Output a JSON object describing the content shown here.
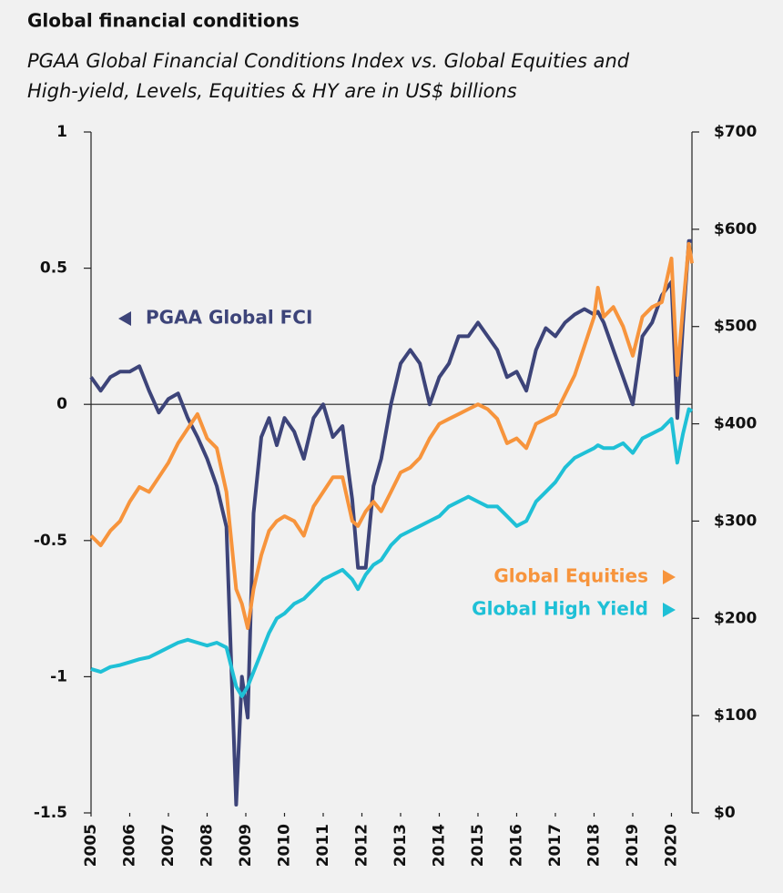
{
  "chart_data": {
    "type": "line",
    "title": "Global financial conditions",
    "subtitle": [
      "PGAA Global Financial Conditions Index vs. Global Equities and",
      "High-yield, Levels, Equities & HY are in US$ billions"
    ],
    "x": [
      2005,
      2005.25,
      2005.5,
      2005.75,
      2006,
      2006.25,
      2006.5,
      2006.75,
      2007,
      2007.25,
      2007.5,
      2007.75,
      2008,
      2008.25,
      2008.5,
      2008.75,
      2008.9,
      2009.05,
      2009.2,
      2009.4,
      2009.6,
      2009.8,
      2010,
      2010.25,
      2010.5,
      2010.75,
      2011,
      2011.25,
      2011.5,
      2011.75,
      2011.9,
      2012.1,
      2012.3,
      2012.5,
      2012.75,
      2013,
      2013.25,
      2013.5,
      2013.75,
      2014,
      2014.25,
      2014.5,
      2014.75,
      2015,
      2015.25,
      2015.5,
      2015.75,
      2016,
      2016.25,
      2016.5,
      2016.75,
      2017,
      2017.25,
      2017.5,
      2017.75,
      2018,
      2018.1,
      2018.25,
      2018.5,
      2018.75,
      2019,
      2019.25,
      2019.5,
      2019.75,
      2020,
      2020.15,
      2020.3,
      2020.45,
      2020.53
    ],
    "series": [
      {
        "name": "PGAA Global FCI",
        "color": "#3d4479",
        "axis": "y",
        "values": [
          0.1,
          0.05,
          0.1,
          0.12,
          0.12,
          0.14,
          0.05,
          -0.03,
          0.02,
          0.04,
          -0.05,
          -0.12,
          -0.2,
          -0.3,
          -0.45,
          -1.47,
          -1.0,
          -1.15,
          -0.4,
          -0.12,
          -0.05,
          -0.15,
          -0.05,
          -0.1,
          -0.2,
          -0.05,
          0.0,
          -0.12,
          -0.08,
          -0.35,
          -0.6,
          -0.6,
          -0.3,
          -0.2,
          0.0,
          0.15,
          0.2,
          0.15,
          0.0,
          0.1,
          0.15,
          0.25,
          0.25,
          0.3,
          0.25,
          0.2,
          0.1,
          0.12,
          0.05,
          0.2,
          0.28,
          0.25,
          0.3,
          0.33,
          0.35,
          0.33,
          0.34,
          0.3,
          0.2,
          0.1,
          0.0,
          0.25,
          0.3,
          0.4,
          0.45,
          -0.05,
          0.3,
          0.6,
          0.6
        ]
      },
      {
        "name": "Global Equities",
        "color": "#f7943c",
        "axis": "y2",
        "values": [
          285,
          275,
          290,
          300,
          320,
          335,
          330,
          345,
          360,
          380,
          395,
          410,
          385,
          375,
          330,
          230,
          215,
          190,
          230,
          265,
          290,
          300,
          305,
          300,
          285,
          315,
          330,
          345,
          345,
          300,
          295,
          310,
          320,
          310,
          330,
          350,
          355,
          365,
          385,
          400,
          405,
          410,
          415,
          420,
          415,
          405,
          380,
          385,
          375,
          400,
          405,
          410,
          430,
          450,
          480,
          510,
          540,
          510,
          520,
          500,
          470,
          510,
          520,
          525,
          570,
          450,
          520,
          585,
          565
        ]
      },
      {
        "name": "Global High Yield",
        "color": "#1fc0d6",
        "axis": "y2",
        "values": [
          148,
          145,
          150,
          152,
          155,
          158,
          160,
          165,
          170,
          175,
          178,
          175,
          172,
          175,
          170,
          130,
          120,
          130,
          145,
          165,
          185,
          200,
          205,
          215,
          220,
          230,
          240,
          245,
          250,
          240,
          230,
          245,
          255,
          260,
          275,
          285,
          290,
          295,
          300,
          305,
          315,
          320,
          325,
          320,
          315,
          315,
          305,
          295,
          300,
          320,
          330,
          340,
          355,
          365,
          370,
          375,
          378,
          375,
          375,
          380,
          370,
          385,
          390,
          395,
          405,
          360,
          390,
          415,
          413
        ]
      }
    ],
    "xlim": [
      2005,
      2020.53
    ],
    "xticks": [
      2005,
      2006,
      2007,
      2008,
      2009,
      2010,
      2011,
      2012,
      2013,
      2014,
      2015,
      2016,
      2017,
      2018,
      2019,
      2020
    ],
    "ylim": [
      -1.5,
      1
    ],
    "yticks": [
      -1.5,
      -1,
      -0.5,
      0,
      0.5,
      1
    ],
    "y2lim": [
      0,
      700
    ],
    "y2ticks": [
      {
        "value": 0,
        "label": "$0"
      },
      {
        "value": 100,
        "label": "$100"
      },
      {
        "value": 200,
        "label": "$200"
      },
      {
        "value": 300,
        "label": "$300"
      },
      {
        "value": 400,
        "label": "$400"
      },
      {
        "value": 500,
        "label": "$500"
      },
      {
        "value": 600,
        "label": "$600"
      },
      {
        "value": 700,
        "label": "$700"
      }
    ]
  }
}
